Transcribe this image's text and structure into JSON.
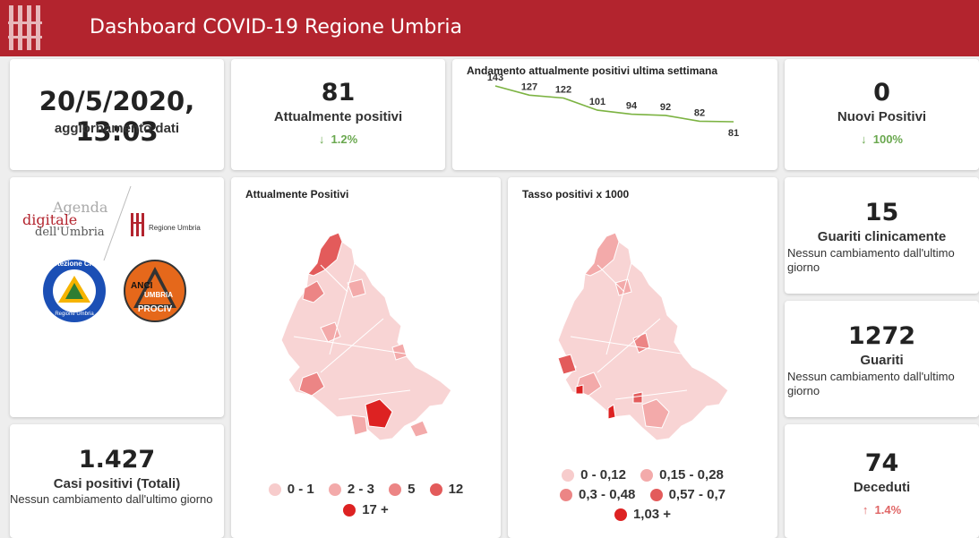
{
  "header": {
    "title": "Dashboard COVID-19 Regione Umbria"
  },
  "update": {
    "datetime": "20/5/2020, 13:03",
    "label": "aggiornamento dati"
  },
  "positivi": {
    "value": "81",
    "label": "Attualmente positivi",
    "delta": "1.2%",
    "delta_arrow": "↓"
  },
  "trend": {
    "title": "Andamento attualmente positivi ultima settimana",
    "chart_data": {
      "type": "line",
      "title": "Andamento attualmente positivi ultima settimana",
      "values": [
        143,
        127,
        122,
        101,
        94,
        92,
        82,
        81
      ],
      "labels": [
        "143",
        "127",
        "122",
        "101",
        "94",
        "92",
        "82",
        "81"
      ],
      "color": "#7cb342"
    }
  },
  "nuovi": {
    "value": "0",
    "label": "Nuovi Positivi",
    "delta": "100%",
    "delta_arrow": "↓"
  },
  "logos": {
    "agenda_line1": "Agenda",
    "agenda_line2": "digitale",
    "agenda_line3": "dell'Umbria",
    "regione": "Regione Umbria",
    "protezione": "Protezione Civile",
    "protezione_sub": "Regione Umbria",
    "anci_top": "ANCI",
    "anci_mid": "UMBRIA",
    "anci_bottom": "PROCIV"
  },
  "map1": {
    "title": "Attualmente Positivi",
    "legend": [
      {
        "label": "0 - 1",
        "color": "#f7cccc"
      },
      {
        "label": "2 - 3",
        "color": "#f3aaaa"
      },
      {
        "label": "5",
        "color": "#ec8585"
      },
      {
        "label": "12",
        "color": "#e35b5b"
      },
      {
        "label": "17 +",
        "color": "#dd2222"
      }
    ]
  },
  "map2": {
    "title": "Tasso positivi x 1000",
    "legend": [
      {
        "label": "0 - 0,12",
        "color": "#f7cccc"
      },
      {
        "label": "0,15 - 0,28",
        "color": "#f3aaaa"
      },
      {
        "label": "0,3 - 0,48",
        "color": "#ec8585"
      },
      {
        "label": "0,57 - 0,7",
        "color": "#e35b5b"
      },
      {
        "label": "1,03 +",
        "color": "#dd2222"
      }
    ]
  },
  "guariti_clin": {
    "value": "15",
    "label": "Guariti clinicamente",
    "note": "Nessun cambiamento dall'ultimo giorno"
  },
  "guariti": {
    "value": "1272",
    "label": "Guariti",
    "note": "Nessun cambiamento dall'ultimo giorno"
  },
  "totali": {
    "value": "1.427",
    "label": "Casi positivi (Totali)",
    "note": "Nessun cambiamento dall'ultimo giorno"
  },
  "deceduti": {
    "value": "74",
    "label": "Deceduti",
    "delta": "1.4%",
    "delta_arrow": "↑"
  }
}
